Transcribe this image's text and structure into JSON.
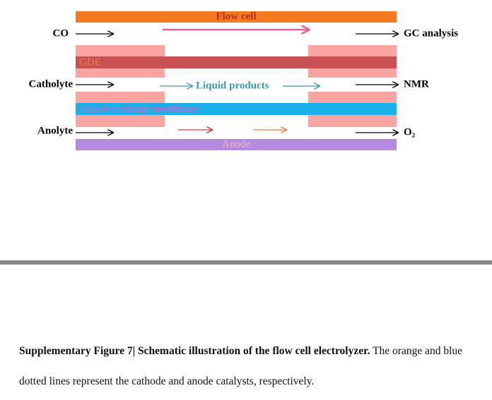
{
  "diagram": {
    "labels": {
      "flow_cell": "Flow cell",
      "co": "CO",
      "gc": "GC analysis",
      "gde": "GDE",
      "catholyte": "Catholyte",
      "liquid": "Liquid products",
      "nmr": "NMR",
      "membrane": "Anion exchange membrane",
      "anolyte": "Anolyte",
      "o2": "O₂",
      "anode": "Anode"
    }
  },
  "caption": {
    "bold": "Supplementary Figure 7| Schematic illustration of the flow cell electrolyzer.",
    "text": "The orange and blue dotted lines represent the cathode and anode catalysts, respectively."
  }
}
